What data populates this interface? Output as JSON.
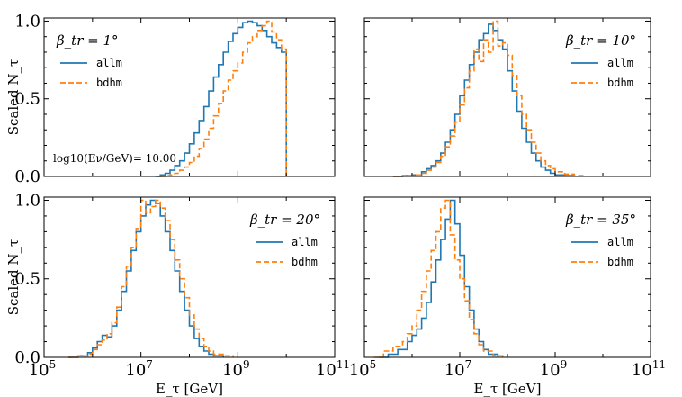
{
  "chart_data": {
    "type": "line",
    "step": true,
    "x_scale": "log",
    "xlim_log10": [
      5,
      11
    ],
    "ylim": [
      0,
      1.02
    ],
    "x_ticks": [
      {
        "base": "10",
        "exp": "5",
        "log": 5
      },
      {
        "base": "10",
        "exp": "7",
        "log": 7
      },
      {
        "base": "10",
        "exp": "9",
        "log": 9
      },
      {
        "base": "10",
        "exp": "11",
        "log": 11
      }
    ],
    "y_ticks": [
      {
        "label": "0.0",
        "value": 0.0
      },
      {
        "label": "0.5",
        "value": 0.5
      },
      {
        "label": "1.0",
        "value": 1.0
      }
    ],
    "xlabel": "E_τ [GeV]",
    "ylabel": "Scaled N_τ",
    "series_styles": [
      {
        "name": "allm",
        "color": "#1f77b4",
        "dash": "none"
      },
      {
        "name": "bdhm",
        "color": "#ff7f0e",
        "dash": "6,3"
      }
    ],
    "panels": [
      {
        "id": "beta-1",
        "title": "β_tr = 1°",
        "legend_position": "top-left",
        "annotation": "log10(Eν/GeV)= 10.00",
        "series": [
          {
            "name": "allm",
            "points": [
              [
                7.3,
                0
              ],
              [
                7.4,
                0.01
              ],
              [
                7.5,
                0.02
              ],
              [
                7.6,
                0.04
              ],
              [
                7.7,
                0.07
              ],
              [
                7.8,
                0.1
              ],
              [
                7.9,
                0.15
              ],
              [
                8.0,
                0.21
              ],
              [
                8.1,
                0.28
              ],
              [
                8.2,
                0.36
              ],
              [
                8.3,
                0.45
              ],
              [
                8.4,
                0.55
              ],
              [
                8.5,
                0.64
              ],
              [
                8.6,
                0.72
              ],
              [
                8.7,
                0.8
              ],
              [
                8.8,
                0.87
              ],
              [
                8.9,
                0.92
              ],
              [
                9.0,
                0.96
              ],
              [
                9.1,
                0.99
              ],
              [
                9.2,
                1.0
              ],
              [
                9.3,
                0.99
              ],
              [
                9.4,
                0.97
              ],
              [
                9.5,
                0.94
              ],
              [
                9.6,
                0.9
              ],
              [
                9.7,
                0.86
              ],
              [
                9.8,
                0.83
              ],
              [
                9.9,
                0.8
              ],
              [
                10.0,
                0.0
              ]
            ]
          },
          {
            "name": "bdhm",
            "points": [
              [
                7.4,
                0
              ],
              [
                7.5,
                0.005
              ],
              [
                7.6,
                0.01
              ],
              [
                7.7,
                0.02
              ],
              [
                7.8,
                0.04
              ],
              [
                7.9,
                0.06
              ],
              [
                8.0,
                0.09
              ],
              [
                8.1,
                0.13
              ],
              [
                8.2,
                0.18
              ],
              [
                8.3,
                0.24
              ],
              [
                8.4,
                0.31
              ],
              [
                8.5,
                0.39
              ],
              [
                8.6,
                0.47
              ],
              [
                8.7,
                0.55
              ],
              [
                8.8,
                0.62
              ],
              [
                8.9,
                0.68
              ],
              [
                9.0,
                0.73
              ],
              [
                9.1,
                0.8
              ],
              [
                9.2,
                0.86
              ],
              [
                9.3,
                0.9
              ],
              [
                9.4,
                0.94
              ],
              [
                9.5,
                0.97
              ],
              [
                9.6,
                1.0
              ],
              [
                9.7,
                0.93
              ],
              [
                9.8,
                0.88
              ],
              [
                9.9,
                0.82
              ],
              [
                10.0,
                0.0
              ]
            ]
          }
        ]
      },
      {
        "id": "beta-10",
        "title": "β_tr = 10°",
        "legend_position": "top-right",
        "series": [
          {
            "name": "allm",
            "points": [
              [
                5.6,
                0
              ],
              [
                5.8,
                0.005
              ],
              [
                6.0,
                0.01
              ],
              [
                6.2,
                0.03
              ],
              [
                6.3,
                0.05
              ],
              [
                6.4,
                0.07
              ],
              [
                6.5,
                0.1
              ],
              [
                6.6,
                0.15
              ],
              [
                6.7,
                0.22
              ],
              [
                6.8,
                0.3
              ],
              [
                6.9,
                0.4
              ],
              [
                7.0,
                0.52
              ],
              [
                7.1,
                0.62
              ],
              [
                7.2,
                0.72
              ],
              [
                7.3,
                0.8
              ],
              [
                7.4,
                0.88
              ],
              [
                7.5,
                0.92
              ],
              [
                7.6,
                0.98
              ],
              [
                7.7,
                0.94
              ],
              [
                7.8,
                0.88
              ],
              [
                7.9,
                0.82
              ],
              [
                8.0,
                0.68
              ],
              [
                8.1,
                0.55
              ],
              [
                8.2,
                0.42
              ],
              [
                8.3,
                0.31
              ],
              [
                8.4,
                0.22
              ],
              [
                8.5,
                0.15
              ],
              [
                8.6,
                0.1
              ],
              [
                8.7,
                0.06
              ],
              [
                8.8,
                0.04
              ],
              [
                8.9,
                0.02
              ],
              [
                9.0,
                0.01
              ],
              [
                9.2,
                0.005
              ],
              [
                9.4,
                0
              ]
            ]
          },
          {
            "name": "bdhm",
            "points": [
              [
                5.6,
                0
              ],
              [
                5.8,
                0.005
              ],
              [
                6.0,
                0.01
              ],
              [
                6.2,
                0.02
              ],
              [
                6.3,
                0.04
              ],
              [
                6.4,
                0.06
              ],
              [
                6.5,
                0.09
              ],
              [
                6.6,
                0.13
              ],
              [
                6.7,
                0.19
              ],
              [
                6.8,
                0.26
              ],
              [
                6.9,
                0.35
              ],
              [
                7.0,
                0.46
              ],
              [
                7.1,
                0.57
              ],
              [
                7.2,
                0.68
              ],
              [
                7.3,
                0.82
              ],
              [
                7.4,
                0.74
              ],
              [
                7.5,
                0.88
              ],
              [
                7.6,
                0.8
              ],
              [
                7.7,
                1.0
              ],
              [
                7.8,
                0.84
              ],
              [
                7.9,
                0.86
              ],
              [
                8.0,
                0.78
              ],
              [
                8.1,
                0.65
              ],
              [
                8.2,
                0.52
              ],
              [
                8.3,
                0.4
              ],
              [
                8.4,
                0.3
              ],
              [
                8.5,
                0.22
              ],
              [
                8.6,
                0.15
              ],
              [
                8.7,
                0.1
              ],
              [
                8.8,
                0.07
              ],
              [
                8.9,
                0.05
              ],
              [
                9.0,
                0.03
              ],
              [
                9.2,
                0.015
              ],
              [
                9.4,
                0.005
              ],
              [
                9.6,
                0
              ]
            ]
          }
        ]
      },
      {
        "id": "beta-20",
        "title": "β_tr = 20°",
        "legend_position": "top-right",
        "series": [
          {
            "name": "allm",
            "points": [
              [
                5.5,
                0
              ],
              [
                5.7,
                0.01
              ],
              [
                5.9,
                0.03
              ],
              [
                6.0,
                0.06
              ],
              [
                6.1,
                0.1
              ],
              [
                6.2,
                0.14
              ],
              [
                6.3,
                0.13
              ],
              [
                6.4,
                0.2
              ],
              [
                6.5,
                0.3
              ],
              [
                6.6,
                0.42
              ],
              [
                6.7,
                0.55
              ],
              [
                6.8,
                0.68
              ],
              [
                6.9,
                0.8
              ],
              [
                7.0,
                0.9
              ],
              [
                7.1,
                0.97
              ],
              [
                7.2,
                1.0
              ],
              [
                7.3,
                0.98
              ],
              [
                7.4,
                0.9
              ],
              [
                7.5,
                0.8
              ],
              [
                7.6,
                0.68
              ],
              [
                7.7,
                0.55
              ],
              [
                7.8,
                0.42
              ],
              [
                7.9,
                0.3
              ],
              [
                8.0,
                0.2
              ],
              [
                8.1,
                0.12
              ],
              [
                8.2,
                0.07
              ],
              [
                8.3,
                0.04
              ],
              [
                8.4,
                0.02
              ],
              [
                8.5,
                0.01
              ],
              [
                8.7,
                0
              ]
            ]
          },
          {
            "name": "bdhm",
            "points": [
              [
                5.5,
                0
              ],
              [
                5.7,
                0.01
              ],
              [
                5.9,
                0.02
              ],
              [
                6.0,
                0.05
              ],
              [
                6.1,
                0.08
              ],
              [
                6.2,
                0.11
              ],
              [
                6.3,
                0.15
              ],
              [
                6.4,
                0.22
              ],
              [
                6.5,
                0.32
              ],
              [
                6.6,
                0.45
              ],
              [
                6.7,
                0.58
              ],
              [
                6.8,
                0.7
              ],
              [
                6.9,
                0.82
              ],
              [
                7.0,
                1.0
              ],
              [
                7.1,
                0.92
              ],
              [
                7.2,
                0.96
              ],
              [
                7.3,
                1.0
              ],
              [
                7.4,
                0.95
              ],
              [
                7.5,
                0.87
              ],
              [
                7.6,
                0.75
              ],
              [
                7.7,
                0.62
              ],
              [
                7.8,
                0.5
              ],
              [
                7.9,
                0.38
              ],
              [
                8.0,
                0.27
              ],
              [
                8.1,
                0.18
              ],
              [
                8.2,
                0.12
              ],
              [
                8.3,
                0.07
              ],
              [
                8.4,
                0.04
              ],
              [
                8.5,
                0.02
              ],
              [
                8.7,
                0.01
              ],
              [
                8.9,
                0
              ]
            ]
          }
        ]
      },
      {
        "id": "beta-35",
        "title": "β_tr = 35°",
        "legend_position": "top-right",
        "series": [
          {
            "name": "allm",
            "points": [
              [
                5.3,
                0
              ],
              [
                5.5,
                0.02
              ],
              [
                5.7,
                0.05
              ],
              [
                5.9,
                0.1
              ],
              [
                6.0,
                0.14
              ],
              [
                6.1,
                0.18
              ],
              [
                6.2,
                0.25
              ],
              [
                6.3,
                0.35
              ],
              [
                6.4,
                0.48
              ],
              [
                6.5,
                0.62
              ],
              [
                6.6,
                0.75
              ],
              [
                6.7,
                0.88
              ],
              [
                6.8,
                1.0
              ],
              [
                6.9,
                0.85
              ],
              [
                7.0,
                0.65
              ],
              [
                7.1,
                0.45
              ],
              [
                7.2,
                0.3
              ],
              [
                7.3,
                0.18
              ],
              [
                7.4,
                0.1
              ],
              [
                7.5,
                0.05
              ],
              [
                7.6,
                0.02
              ],
              [
                7.8,
                0
              ]
            ]
          },
          {
            "name": "bdhm",
            "points": [
              [
                5.2,
                0
              ],
              [
                5.4,
                0.04
              ],
              [
                5.6,
                0.07
              ],
              [
                5.8,
                0.1
              ],
              [
                5.9,
                0.15
              ],
              [
                6.0,
                0.2
              ],
              [
                6.1,
                0.3
              ],
              [
                6.2,
                0.42
              ],
              [
                6.3,
                0.55
              ],
              [
                6.4,
                0.68
              ],
              [
                6.5,
                0.8
              ],
              [
                6.6,
                0.95
              ],
              [
                6.7,
                1.0
              ],
              [
                6.8,
                0.78
              ],
              [
                6.9,
                0.62
              ],
              [
                7.0,
                0.5
              ],
              [
                7.1,
                0.36
              ],
              [
                7.2,
                0.24
              ],
              [
                7.3,
                0.15
              ],
              [
                7.4,
                0.08
              ],
              [
                7.5,
                0.04
              ],
              [
                7.7,
                0.01
              ],
              [
                7.9,
                0
              ]
            ]
          }
        ]
      }
    ]
  }
}
